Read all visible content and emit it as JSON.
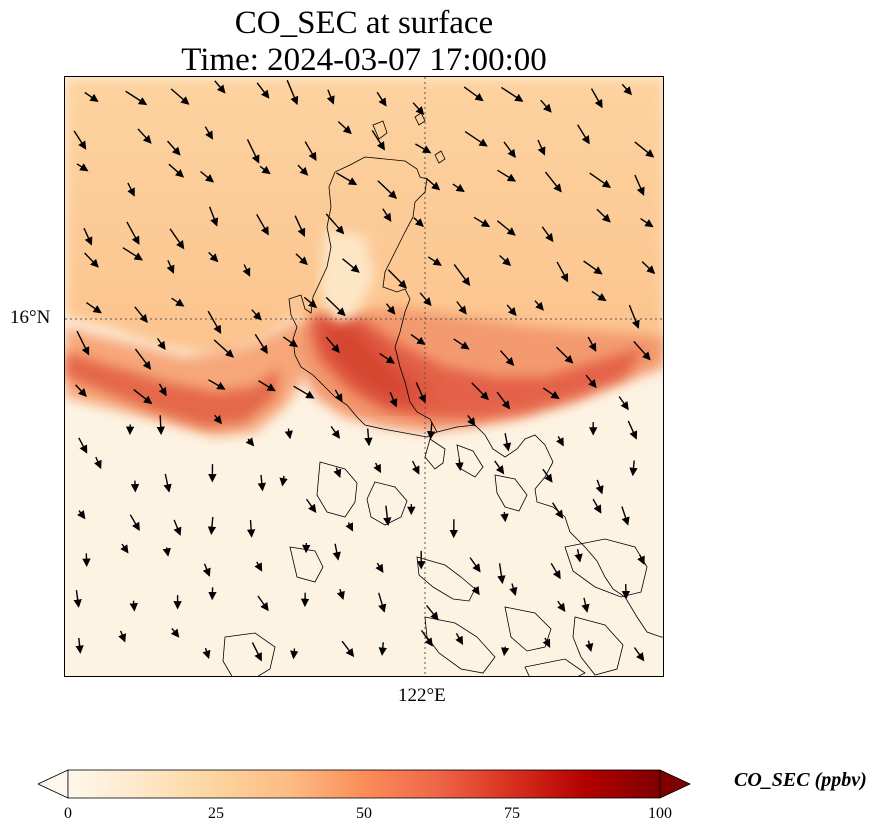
{
  "title": {
    "line1": "CO_SEC at surface",
    "line2": "Time: 2024-03-07 17:00:00"
  },
  "axes": {
    "lat_tick": "16°N",
    "lon_tick": "122°E",
    "gridlines": "dotted"
  },
  "colorbar": {
    "label": "CO_SEC (ppbv)",
    "min": 0,
    "max": 100,
    "ticks": [
      "0",
      "25",
      "50",
      "75",
      "100"
    ],
    "colormap": "OrRd",
    "colors": [
      "#fff7ec",
      "#fee8c8",
      "#fdd49e",
      "#fdbb84",
      "#fc8d59",
      "#ef6548",
      "#d7301f",
      "#b30000",
      "#7f0000"
    ],
    "extend": "both"
  },
  "map": {
    "field": "CO_SEC",
    "level": "surface",
    "wind_vectors": "black arrows",
    "coastlines": "black",
    "plume": "high CO_SEC concentration band over central Luzon extending west over the sea"
  }
}
